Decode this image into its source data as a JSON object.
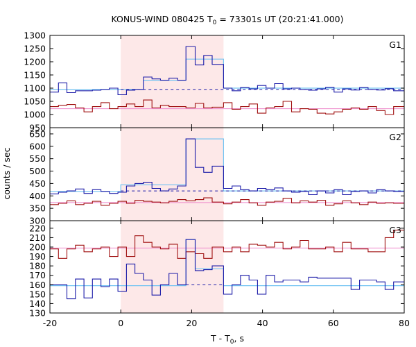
{
  "chart_data": {
    "type": "line",
    "title_prefix": "KONUS-WIND 080425 T",
    "title_subscript": "0",
    "title_suffix": " = 73301s UT (20:21:41.000)",
    "xlabel_prefix": "T - T",
    "xlabel_subscript": "0",
    "xlabel_suffix": ", s",
    "ylabel": "counts / sec",
    "xlim": [
      -20,
      80
    ],
    "xticks": [
      -20,
      0,
      20,
      40,
      60,
      80
    ],
    "highlight_interval": [
      0,
      29
    ],
    "colors": {
      "highlight": "#fde8e8",
      "series_a": "#1a1aa8",
      "series_b": "#a01010",
      "fit_a": "#74c4f2",
      "fit_b": "#ee88cc",
      "dashed_a": "#1a1aa8"
    },
    "panels": [
      {
        "name": "G1",
        "ylim": [
          950,
          1300
        ],
        "yticks": [
          950,
          1000,
          1050,
          1100,
          1150,
          1200,
          1250,
          1300
        ],
        "series_a": {
          "edges": [
            -20,
            -17.6,
            -15.2,
            -12.8,
            -10.4,
            -8.0,
            -5.6,
            -3.2,
            -0.8,
            1.6,
            4.0,
            6.4,
            8.8,
            11.2,
            13.6,
            16.0,
            18.4,
            21.0,
            23.4,
            25.8,
            29.0,
            31.4,
            33.8,
            36.2,
            38.6,
            41.0,
            43.4,
            45.8,
            48.2,
            50.6,
            53.0,
            55.4,
            57.8,
            60.2,
            62.6,
            65.0,
            67.4,
            69.8,
            72.2,
            74.6,
            77.0,
            80.0
          ],
          "values": [
            1085,
            1120,
            1083,
            1090,
            1090,
            1092,
            1095,
            1100,
            1075,
            1092,
            1095,
            1142,
            1135,
            1130,
            1138,
            1130,
            1258,
            1188,
            1224,
            1190,
            1100,
            1090,
            1102,
            1097,
            1110,
            1100,
            1117,
            1097,
            1100,
            1095,
            1092,
            1097,
            1103,
            1085,
            1097,
            1093,
            1102,
            1095,
            1093,
            1098,
            1090
          ]
        },
        "fit_a": {
          "edges": [
            -20,
            6.4,
            18.4,
            29.0,
            80.0
          ],
          "values": [
            1095,
            1130,
            1210,
            1100
          ]
        },
        "dashed_a": {
          "from": 0,
          "to": 80,
          "value": 1095
        },
        "series_b": {
          "edges": [
            -20,
            -17.6,
            -15.2,
            -12.8,
            -10.4,
            -8.0,
            -5.6,
            -3.2,
            -0.8,
            1.6,
            4.0,
            6.4,
            8.8,
            11.2,
            13.6,
            16.0,
            18.4,
            21.0,
            23.4,
            25.8,
            29.0,
            31.4,
            33.8,
            36.2,
            38.6,
            41.0,
            43.4,
            45.8,
            48.2,
            50.6,
            53.0,
            55.4,
            57.8,
            60.2,
            62.6,
            65.0,
            67.4,
            69.8,
            72.2,
            74.6,
            77.0,
            80.0
          ],
          "values": [
            1030,
            1035,
            1038,
            1025,
            1010,
            1030,
            1045,
            1022,
            1030,
            1040,
            1030,
            1055,
            1025,
            1035,
            1030,
            1030,
            1025,
            1042,
            1025,
            1028,
            1045,
            1020,
            1030,
            1040,
            1005,
            1025,
            1030,
            1050,
            1010,
            1022,
            1020,
            1005,
            1002,
            1010,
            1020,
            1025,
            1020,
            1030,
            1015,
            1000,
            1030
          ]
        },
        "fit_b": {
          "value": 1022
        }
      },
      {
        "name": "G2",
        "ylim": [
          300,
          675
        ],
        "yticks": [
          300,
          350,
          400,
          450,
          500,
          550,
          600,
          650
        ],
        "series_a": {
          "edges": [
            -20,
            -17.6,
            -15.2,
            -12.8,
            -10.4,
            -8.0,
            -5.6,
            -3.2,
            -0.8,
            1.6,
            4.0,
            6.4,
            8.8,
            11.2,
            13.6,
            16.0,
            18.4,
            21.0,
            23.4,
            25.8,
            29.0,
            31.4,
            33.8,
            36.2,
            38.6,
            41.0,
            43.4,
            45.8,
            48.2,
            50.6,
            53.0,
            55.4,
            57.8,
            60.2,
            62.6,
            65.0,
            67.4,
            69.8,
            72.2,
            74.6,
            77.0,
            80.0
          ],
          "values": [
            408,
            415,
            420,
            428,
            410,
            425,
            418,
            410,
            415,
            440,
            450,
            455,
            430,
            420,
            428,
            440,
            630,
            515,
            495,
            520,
            430,
            440,
            425,
            420,
            430,
            425,
            432,
            420,
            415,
            418,
            405,
            420,
            412,
            425,
            405,
            418,
            420,
            412,
            425,
            420,
            418
          ]
        },
        "fit_a": {
          "edges": [
            -20,
            0.0,
            18.4,
            29.0,
            80.0
          ],
          "values": [
            418,
            445,
            630,
            420
          ]
        },
        "dashed_a": {
          "from": 0,
          "to": 80,
          "value": 420
        },
        "series_b": {
          "edges": [
            -20,
            -17.6,
            -15.2,
            -12.8,
            -10.4,
            -8.0,
            -5.6,
            -3.2,
            -0.8,
            1.6,
            4.0,
            6.4,
            8.8,
            11.2,
            13.6,
            16.0,
            18.4,
            21.0,
            23.4,
            25.8,
            29.0,
            31.4,
            33.8,
            36.2,
            38.6,
            41.0,
            43.4,
            45.8,
            48.2,
            50.6,
            53.0,
            55.4,
            57.8,
            60.2,
            62.6,
            65.0,
            67.4,
            69.8,
            72.2,
            74.6,
            77.0,
            80.0
          ],
          "values": [
            365,
            370,
            380,
            365,
            370,
            378,
            362,
            370,
            378,
            370,
            382,
            378,
            375,
            372,
            378,
            385,
            380,
            385,
            392,
            375,
            368,
            375,
            385,
            372,
            362,
            375,
            378,
            390,
            372,
            380,
            375,
            382,
            362,
            368,
            380,
            372,
            365,
            375,
            370,
            372,
            370
          ]
        },
        "fit_b": {
          "value": 373
        }
      },
      {
        "name": "G3",
        "ylim": [
          130,
          228
        ],
        "yticks": [
          130,
          140,
          150,
          160,
          170,
          180,
          190,
          200,
          210,
          220
        ],
        "series_a": {
          "edges": [
            -20,
            -17.6,
            -15.2,
            -12.8,
            -10.4,
            -8.0,
            -5.6,
            -3.2,
            -0.8,
            1.6,
            4.0,
            6.4,
            8.8,
            11.2,
            13.6,
            16.0,
            18.4,
            21.0,
            23.4,
            25.8,
            29.0,
            31.4,
            33.8,
            36.2,
            38.6,
            41.0,
            43.4,
            45.8,
            48.2,
            50.6,
            53.0,
            55.4,
            57.8,
            60.2,
            62.6,
            65.0,
            67.4,
            69.8,
            72.2,
            74.6,
            77.0,
            80.0
          ],
          "values": [
            160,
            160,
            145,
            166,
            146,
            166,
            158,
            166,
            153,
            182,
            172,
            165,
            149,
            160,
            172,
            160,
            208,
            175,
            176,
            180,
            150,
            160,
            170,
            165,
            150,
            170,
            163,
            165,
            165,
            163,
            168,
            167,
            167,
            167,
            167,
            155,
            165,
            165,
            163,
            155,
            163
          ]
        },
        "fit_a": {
          "edges": [
            -20,
            18.4,
            21.0,
            29.0,
            80.0
          ],
          "values": [
            159,
            208,
            177,
            159
          ]
        },
        "dashed_a": {
          "from": 18.4,
          "to": 29.0,
          "value": 160
        },
        "series_b": {
          "edges": [
            -20,
            -17.6,
            -15.2,
            -12.8,
            -10.4,
            -8.0,
            -5.6,
            -3.2,
            -0.8,
            1.6,
            4.0,
            6.4,
            8.8,
            11.2,
            13.6,
            16.0,
            18.4,
            21.0,
            23.4,
            25.8,
            29.0,
            31.4,
            33.8,
            36.2,
            38.6,
            41.0,
            43.4,
            45.8,
            48.2,
            50.6,
            53.0,
            55.4,
            57.8,
            60.2,
            62.6,
            65.0,
            67.4,
            69.8,
            72.2,
            74.6,
            77.0,
            80.0
          ],
          "values": [
            198,
            188,
            198,
            202,
            195,
            198,
            200,
            190,
            200,
            190,
            212,
            205,
            200,
            198,
            203,
            188,
            195,
            193,
            188,
            200,
            195,
            200,
            195,
            203,
            202,
            200,
            205,
            198,
            200,
            207,
            198,
            198,
            200,
            195,
            205,
            198,
            198,
            195,
            195,
            210,
            218
          ]
        },
        "fit_b": {
          "value": 199
        }
      }
    ]
  }
}
